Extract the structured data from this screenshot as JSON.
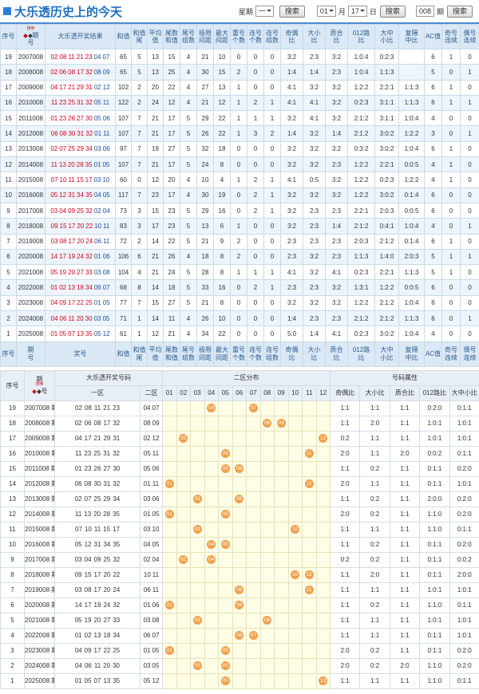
{
  "header": {
    "title": "大乐透历史上的今天",
    "week_label": "星期",
    "week_value": "一",
    "search": "搜索",
    "month_value": "01",
    "month_label": "月",
    "day_value": "17",
    "day_label": "日",
    "issue_value": "008",
    "issue_label": "期"
  },
  "table1": {
    "sort_label": "排序",
    "footer_result_label": "奖号",
    "columns": [
      [
        "序号"
      ],
      [
        "期",
        "号"
      ],
      [
        "大乐透开奖结果"
      ],
      [
        "和值"
      ],
      [
        "和值",
        "尾"
      ],
      [
        "平均",
        "值"
      ],
      [
        "尾数",
        "和值"
      ],
      [
        "尾号",
        "组数"
      ],
      [
        "极限",
        "间距"
      ],
      [
        "最大",
        "间距"
      ],
      [
        "重号",
        "个数"
      ],
      [
        "连号",
        "个数"
      ],
      [
        "连号",
        "组数"
      ],
      [
        "奇偶",
        "比"
      ],
      [
        "大小",
        "比"
      ],
      [
        "质合",
        "比"
      ],
      [
        "012路",
        "比"
      ],
      [
        "大中",
        "小比"
      ],
      [
        "复隔",
        "中比"
      ],
      [
        "AC值"
      ],
      [
        "奇号",
        "连续"
      ],
      [
        "偶号",
        "连续"
      ]
    ],
    "rows": [
      {
        "no": 19,
        "issue": "2007008",
        "front": [
          "02",
          "08",
          "11",
          "21",
          "23"
        ],
        "back": [
          "04",
          "07"
        ],
        "stats": [
          65,
          5,
          13,
          15,
          4,
          21,
          10,
          0,
          0,
          0,
          "3:2",
          "2:3",
          "3:2",
          "1:0:4",
          "0:2:3",
          null,
          6,
          1,
          0
        ]
      },
      {
        "no": 18,
        "issue": "2008008",
        "front": [
          "02",
          "06",
          "08",
          "17",
          "32"
        ],
        "back": [
          "08",
          "09"
        ],
        "stats": [
          65,
          5,
          13,
          25,
          4,
          30,
          15,
          2,
          0,
          0,
          "1:4",
          "1:4",
          "2:3",
          "1:0:4",
          "1:1:3",
          null,
          5,
          0,
          1
        ]
      },
      {
        "no": 17,
        "issue": "2009008",
        "front": [
          "04",
          "17",
          "21",
          "29",
          "31"
        ],
        "back": [
          "02",
          "12"
        ],
        "stats": [
          102,
          2,
          20,
          22,
          4,
          27,
          13,
          1,
          0,
          0,
          "4:1",
          "3:2",
          "3:2",
          "1:2:2",
          "2:2:1",
          "1:1:3",
          6,
          1,
          0
        ]
      },
      {
        "no": 16,
        "issue": "2010008",
        "front": [
          "11",
          "23",
          "25",
          "31",
          "32"
        ],
        "back": [
          "05",
          "11"
        ],
        "stats": [
          122,
          2,
          24,
          12,
          4,
          21,
          12,
          1,
          2,
          1,
          "4:1",
          "4:1",
          "3:2",
          "0:2:3",
          "3:1:1",
          "1:1:3",
          6,
          1,
          1
        ]
      },
      {
        "no": 15,
        "issue": "2011008",
        "front": [
          "01",
          "23",
          "26",
          "27",
          "30"
        ],
        "back": [
          "05",
          "06"
        ],
        "stats": [
          107,
          7,
          21,
          17,
          5,
          29,
          22,
          1,
          1,
          1,
          "3:2",
          "4:1",
          "3:2",
          "2:1:2",
          "3:1:1",
          "1:0:4",
          4,
          0,
          0
        ]
      },
      {
        "no": 14,
        "issue": "2012008",
        "front": [
          "06",
          "08",
          "30",
          "31",
          "32"
        ],
        "back": [
          "01",
          "11"
        ],
        "stats": [
          107,
          7,
          21,
          17,
          5,
          26,
          22,
          1,
          3,
          2,
          "1:4",
          "3:2",
          "1:4",
          "2:1:2",
          "3:0:2",
          "1:2:2",
          3,
          0,
          1
        ]
      },
      {
        "no": 13,
        "issue": "2013008",
        "front": [
          "02",
          "07",
          "25",
          "29",
          "34"
        ],
        "back": [
          "03",
          "06"
        ],
        "stats": [
          97,
          7,
          19,
          27,
          5,
          32,
          18,
          0,
          0,
          0,
          "3:2",
          "3:2",
          "3:2",
          "0:3:2",
          "3:0:2",
          "1:0:4",
          6,
          1,
          0
        ]
      },
      {
        "no": 12,
        "issue": "2014008",
        "front": [
          "11",
          "13",
          "20",
          "28",
          "35"
        ],
        "back": [
          "01",
          "05"
        ],
        "stats": [
          107,
          7,
          21,
          17,
          5,
          24,
          8,
          0,
          0,
          0,
          "3:2",
          "3:2",
          "2:3",
          "1:2:2",
          "2:2:1",
          "0:0:5",
          4,
          1,
          0
        ]
      },
      {
        "no": 11,
        "issue": "2015008",
        "front": [
          "07",
          "10",
          "11",
          "15",
          "17"
        ],
        "back": [
          "03",
          "10"
        ],
        "stats": [
          60,
          0,
          12,
          20,
          4,
          10,
          4,
          1,
          2,
          1,
          "4:1",
          "0:5",
          "3:2",
          "1:2:2",
          "0:2:3",
          "1:2:2",
          4,
          1,
          0
        ]
      },
      {
        "no": 10,
        "issue": "2016008",
        "front": [
          "05",
          "12",
          "31",
          "34",
          "35"
        ],
        "back": [
          "04",
          "05"
        ],
        "stats": [
          117,
          7,
          23,
          17,
          4,
          30,
          19,
          0,
          2,
          1,
          "3:2",
          "3:2",
          "3:2",
          "1:2:2",
          "3:0:2",
          "0:1:4",
          6,
          0,
          0
        ]
      },
      {
        "no": 9,
        "issue": "2017008",
        "front": [
          "03",
          "04",
          "09",
          "25",
          "32"
        ],
        "back": [
          "02",
          "04"
        ],
        "stats": [
          73,
          3,
          15,
          23,
          5,
          29,
          16,
          0,
          2,
          1,
          "3:2",
          "2:3",
          "2:3",
          "2:2:1",
          "2:0:3",
          "0:0:5",
          6,
          0,
          0
        ]
      },
      {
        "no": 8,
        "issue": "2018008",
        "front": [
          "09",
          "15",
          "17",
          "20",
          "22"
        ],
        "back": [
          "10",
          "11"
        ],
        "stats": [
          83,
          3,
          17,
          23,
          5,
          13,
          6,
          1,
          0,
          0,
          "3:2",
          "2:3",
          "1:4",
          "2:1:2",
          "0:4:1",
          "1:0:4",
          4,
          0,
          1
        ]
      },
      {
        "no": 7,
        "issue": "2019008",
        "front": [
          "03",
          "08",
          "17",
          "20",
          "24"
        ],
        "back": [
          "06",
          "11"
        ],
        "stats": [
          72,
          2,
          14,
          22,
          5,
          21,
          9,
          2,
          0,
          0,
          "2:3",
          "2:3",
          "2:3",
          "2:0:3",
          "2:1:2",
          "0:1:4",
          6,
          1,
          0
        ]
      },
      {
        "no": 6,
        "issue": "2020008",
        "front": [
          "14",
          "17",
          "19",
          "24",
          "32"
        ],
        "back": [
          "01",
          "06"
        ],
        "stats": [
          106,
          6,
          21,
          26,
          4,
          18,
          8,
          2,
          0,
          0,
          "2:3",
          "3:2",
          "2:3",
          "1:1:3",
          "1:4:0",
          "2:0:3",
          5,
          1,
          1
        ]
      },
      {
        "no": 5,
        "issue": "2021008",
        "front": [
          "05",
          "19",
          "20",
          "27",
          "33"
        ],
        "back": [
          "03",
          "08"
        ],
        "stats": [
          104,
          4,
          21,
          24,
          5,
          28,
          8,
          1,
          1,
          1,
          "4:1",
          "3:2",
          "4:1",
          "0:2:3",
          "2:2:1",
          "1:1:3",
          5,
          1,
          0
        ]
      },
      {
        "no": 4,
        "issue": "2022008",
        "front": [
          "01",
          "02",
          "13",
          "18",
          "34"
        ],
        "back": [
          "06",
          "07"
        ],
        "stats": [
          68,
          8,
          14,
          18,
          5,
          33,
          16,
          0,
          2,
          1,
          "2:3",
          "2:3",
          "3:2",
          "1:3:1",
          "1:2:2",
          "0:0:5",
          6,
          0,
          0
        ]
      },
      {
        "no": 3,
        "issue": "2023008",
        "front": [
          "04",
          "09",
          "17",
          "22",
          "25"
        ],
        "back": [
          "01",
          "05"
        ],
        "stats": [
          77,
          7,
          15,
          27,
          5,
          21,
          8,
          0,
          0,
          0,
          "3:2",
          "3:2",
          "3:2",
          "1:2:2",
          "2:1:2",
          "1:0:4",
          6,
          0,
          0
        ]
      },
      {
        "no": 2,
        "issue": "2024008",
        "front": [
          "04",
          "06",
          "11",
          "20",
          "30"
        ],
        "back": [
          "03",
          "05"
        ],
        "stats": [
          71,
          1,
          14,
          11,
          4,
          26,
          10,
          0,
          0,
          0,
          "1:4",
          "2:3",
          "2:3",
          "2:1:2",
          "2:1:2",
          "1:1:3",
          6,
          0,
          1
        ]
      },
      {
        "no": 1,
        "issue": "2025008",
        "front": [
          "01",
          "05",
          "07",
          "13",
          "35"
        ],
        "back": [
          "05",
          "12"
        ],
        "stats": [
          61,
          1,
          12,
          21,
          4,
          34,
          22,
          0,
          0,
          0,
          "5:0",
          "1:4",
          "4:1",
          "0:2:3",
          "3:0:2",
          "1:0:4",
          4,
          0,
          0
        ]
      }
    ]
  },
  "table2": {
    "col_no": "序号",
    "col_issue": [
      "期",
      "号"
    ],
    "sort_label": "排序",
    "col_draw": "大乐透开奖号码",
    "col_front": "一区",
    "col_back": "二区",
    "col_dist": "二区分布",
    "col_attr": "号码属性",
    "zone_cols": [
      "01",
      "02",
      "03",
      "04",
      "05",
      "06",
      "07",
      "08",
      "09",
      "10",
      "11",
      "12"
    ],
    "attr_cols": [
      "奇偶比",
      "大小比",
      "质合比",
      "012路比",
      "大中小比"
    ],
    "rows": [
      {
        "no": 19,
        "issue": "2007008 期",
        "front": [
          "02",
          "08",
          "11",
          "21",
          "23"
        ],
        "back": [
          "04",
          "07"
        ],
        "attrs": [
          "1:1",
          "1:1",
          "1:1",
          "0:2:0",
          "0:1:1"
        ]
      },
      {
        "no": 18,
        "issue": "2008008 期",
        "front": [
          "02",
          "06",
          "08",
          "17",
          "32"
        ],
        "back": [
          "08",
          "09"
        ],
        "attrs": [
          "1:1",
          "2:0",
          "1:1",
          "1:0:1",
          "1:0:1"
        ]
      },
      {
        "no": 17,
        "issue": "2009008 期",
        "front": [
          "04",
          "17",
          "21",
          "29",
          "31"
        ],
        "back": [
          "02",
          "12"
        ],
        "attrs": [
          "0:2",
          "1:1",
          "1:1",
          "1:0:1",
          "1:0:1"
        ]
      },
      {
        "no": 16,
        "issue": "2010008 期",
        "front": [
          "11",
          "23",
          "25",
          "31",
          "32"
        ],
        "back": [
          "05",
          "11"
        ],
        "attrs": [
          "2:0",
          "1:1",
          "2:0",
          "0:0:2",
          "0:1:1"
        ]
      },
      {
        "no": 15,
        "issue": "2011008 期",
        "front": [
          "01",
          "23",
          "26",
          "27",
          "30"
        ],
        "back": [
          "05",
          "06"
        ],
        "attrs": [
          "1:1",
          "0:2",
          "1:1",
          "0:1:1",
          "0:2:0"
        ]
      },
      {
        "no": 14,
        "issue": "2012008 期",
        "front": [
          "06",
          "08",
          "30",
          "31",
          "32"
        ],
        "back": [
          "01",
          "11"
        ],
        "attrs": [
          "2:0",
          "1:1",
          "1:1",
          "0:1:1",
          "1:0:1"
        ]
      },
      {
        "no": 13,
        "issue": "2013008 期",
        "front": [
          "02",
          "07",
          "25",
          "29",
          "34"
        ],
        "back": [
          "03",
          "06"
        ],
        "attrs": [
          "1:1",
          "0:2",
          "1:1",
          "2:0:0",
          "0:2:0"
        ]
      },
      {
        "no": 12,
        "issue": "2014008 期",
        "front": [
          "11",
          "13",
          "20",
          "28",
          "35"
        ],
        "back": [
          "01",
          "05"
        ],
        "attrs": [
          "2:0",
          "0:2",
          "1:1",
          "1:1:0",
          "0:2:0"
        ]
      },
      {
        "no": 11,
        "issue": "2015008 期",
        "front": [
          "07",
          "10",
          "11",
          "15",
          "17"
        ],
        "back": [
          "03",
          "10"
        ],
        "attrs": [
          "1:1",
          "1:1",
          "1:1",
          "1:1:0",
          "0:1:1"
        ]
      },
      {
        "no": 10,
        "issue": "2016008 期",
        "front": [
          "05",
          "12",
          "31",
          "34",
          "35"
        ],
        "back": [
          "04",
          "05"
        ],
        "attrs": [
          "1:1",
          "0:2",
          "1:1",
          "0:1:1",
          "0:2:0"
        ]
      },
      {
        "no": 9,
        "issue": "2017008 期",
        "front": [
          "03",
          "04",
          "09",
          "25",
          "32"
        ],
        "back": [
          "02",
          "04"
        ],
        "attrs": [
          "0:2",
          "0:2",
          "1:1",
          "0:1:1",
          "0:0:2"
        ]
      },
      {
        "no": 8,
        "issue": "2018008 期",
        "front": [
          "09",
          "15",
          "17",
          "20",
          "22"
        ],
        "back": [
          "10",
          "11"
        ],
        "attrs": [
          "1:1",
          "2:0",
          "1:1",
          "0:1:1",
          "2:0:0"
        ]
      },
      {
        "no": 7,
        "issue": "2019008 期",
        "front": [
          "03",
          "08",
          "17",
          "20",
          "24"
        ],
        "back": [
          "06",
          "11"
        ],
        "attrs": [
          "1:1",
          "1:1",
          "1:1",
          "1:0:1",
          "1:0:1"
        ]
      },
      {
        "no": 6,
        "issue": "2020008 期",
        "front": [
          "14",
          "17",
          "19",
          "24",
          "32"
        ],
        "back": [
          "01",
          "06"
        ],
        "attrs": [
          "1:1",
          "0:2",
          "1:1",
          "1:1:0",
          "0:1:1"
        ]
      },
      {
        "no": 5,
        "issue": "2021008 期",
        "front": [
          "05",
          "19",
          "20",
          "27",
          "33"
        ],
        "back": [
          "03",
          "08"
        ],
        "attrs": [
          "1:1",
          "1:1",
          "1:1",
          "1:0:1",
          "1:0:1"
        ]
      },
      {
        "no": 4,
        "issue": "2022008 期",
        "front": [
          "01",
          "02",
          "13",
          "18",
          "34"
        ],
        "back": [
          "06",
          "07"
        ],
        "attrs": [
          "1:1",
          "1:1",
          "1:1",
          "0:1:1",
          "1:0:1"
        ]
      },
      {
        "no": 3,
        "issue": "2023008 期",
        "front": [
          "04",
          "09",
          "17",
          "22",
          "25"
        ],
        "back": [
          "01",
          "05"
        ],
        "attrs": [
          "2:0",
          "0:2",
          "1:1",
          "0:1:1",
          "0:2:0"
        ]
      },
      {
        "no": 2,
        "issue": "2024008 期",
        "front": [
          "04",
          "06",
          "11",
          "20",
          "30"
        ],
        "back": [
          "03",
          "05"
        ],
        "attrs": [
          "2:0",
          "0:2",
          "2:0",
          "1:1:0",
          "0:2:0"
        ]
      },
      {
        "no": 1,
        "issue": "2025008 期",
        "front": [
          "01",
          "05",
          "07",
          "13",
          "35"
        ],
        "back": [
          "05",
          "12"
        ],
        "attrs": [
          "1:1",
          "1:1",
          "1:1",
          "1:1:0",
          "0:1:1"
        ]
      }
    ]
  }
}
